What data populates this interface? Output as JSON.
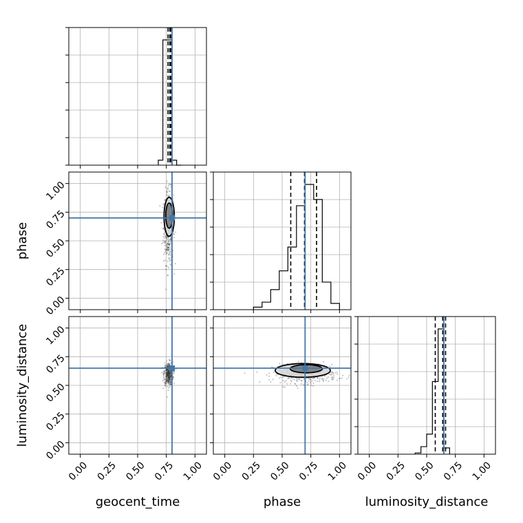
{
  "chart_data": {
    "type": "corner",
    "parameters": [
      "geocent_time",
      "phase",
      "luminosity_distance"
    ],
    "axis_labels": {
      "geocent_time": "geocent_time",
      "phase": "phase",
      "luminosity_distance": "luminosity_distance"
    },
    "axis_range": [
      -0.1,
      1.1
    ],
    "ticks": [
      0.0,
      0.25,
      0.5,
      0.75,
      1.0
    ],
    "tick_labels": [
      "0.00",
      "0.25",
      "0.50",
      "0.75",
      "1.00"
    ],
    "grid": true,
    "injected_values": {
      "geocent_time": 0.8,
      "phase": 0.7,
      "luminosity_distance": 0.65
    },
    "quantiles": {
      "geocent_time": [
        0.765,
        0.78,
        0.79
      ],
      "phase": [
        0.575,
        0.695,
        0.8
      ],
      "luminosity_distance": [
        0.575,
        0.64,
        0.665
      ]
    },
    "histograms": {
      "geocent_time": {
        "edges": [
          0.68,
          0.72,
          0.76,
          0.8,
          0.84,
          0.88
        ],
        "counts": [
          0.04,
          1.0,
          1.0,
          0.04,
          0.0
        ]
      },
      "phase": {
        "edges": [
          0.25,
          0.325,
          0.4,
          0.475,
          0.55,
          0.625,
          0.7,
          0.775,
          0.85,
          0.925,
          1.0
        ],
        "counts": [
          0.02,
          0.06,
          0.16,
          0.31,
          0.5,
          0.83,
          1.0,
          0.88,
          0.22,
          0.05
        ]
      },
      "luminosity_distance": {
        "edges": [
          0.4,
          0.45,
          0.5,
          0.55,
          0.6,
          0.65,
          0.7
        ],
        "counts": [
          0.01,
          0.06,
          0.16,
          0.58,
          1.0,
          0.05
        ]
      }
    },
    "panels_2d": [
      {
        "x": "geocent_time",
        "y": "phase",
        "contours": [
          {
            "cx": 0.775,
            "cy": 0.72,
            "rx": 0.03,
            "ry": 0.11
          },
          {
            "cx": 0.775,
            "cy": 0.71,
            "rx": 0.045,
            "ry": 0.17
          }
        ],
        "scatter_center": [
          0.77,
          0.62
        ],
        "scatter_spread": [
          0.022,
          0.16
        ]
      },
      {
        "x": "geocent_time",
        "y": "luminosity_distance",
        "contours": [],
        "scatter_center": [
          0.77,
          0.6
        ],
        "scatter_spread": [
          0.02,
          0.05
        ]
      },
      {
        "x": "phase",
        "y": "luminosity_distance",
        "contours": [
          {
            "cx": 0.71,
            "cy": 0.645,
            "rx": 0.14,
            "ry": 0.035
          },
          {
            "cx": 0.68,
            "cy": 0.63,
            "rx": 0.24,
            "ry": 0.06
          }
        ],
        "scatter_center": [
          0.7,
          0.6
        ],
        "scatter_spread": [
          0.14,
          0.04
        ]
      }
    ],
    "colors": {
      "truth": "#4477aa",
      "hist": "#000000",
      "grid": "#b0b0b0",
      "scatter": "#333333"
    }
  }
}
